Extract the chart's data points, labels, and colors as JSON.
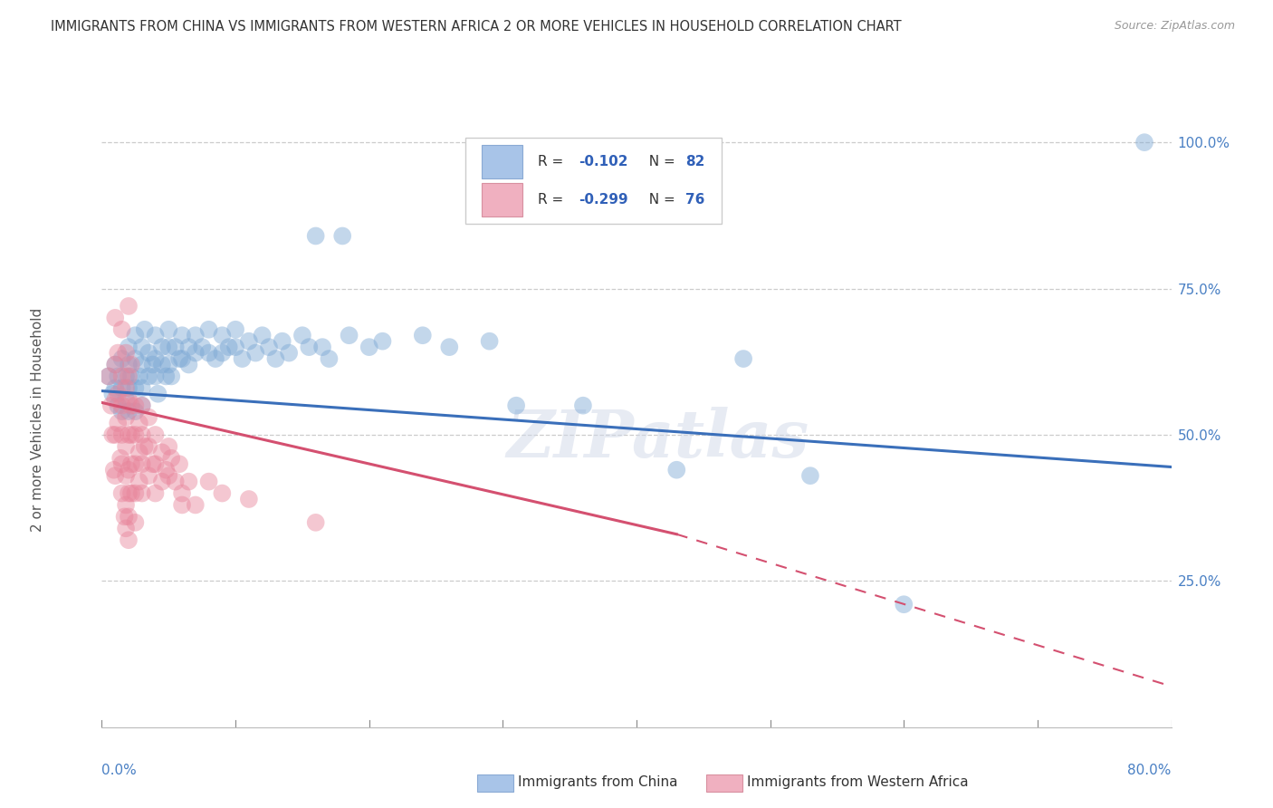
{
  "title": "IMMIGRANTS FROM CHINA VS IMMIGRANTS FROM WESTERN AFRICA 2 OR MORE VEHICLES IN HOUSEHOLD CORRELATION CHART",
  "source": "Source: ZipAtlas.com",
  "ylabel": "2 or more Vehicles in Household",
  "xlim": [
    0.0,
    0.8
  ],
  "ylim": [
    0.0,
    1.05
  ],
  "yticks": [
    0.0,
    0.25,
    0.5,
    0.75,
    1.0
  ],
  "ytick_labels": [
    "",
    "25.0%",
    "50.0%",
    "75.0%",
    "100.0%"
  ],
  "china_color": "#7ba7d4",
  "western_africa_color": "#e8849a",
  "china_line_color": "#3a6fba",
  "wa_line_color": "#d45070",
  "watermark": "ZIPatlas",
  "background_color": "#ffffff",
  "china_scatter": [
    [
      0.005,
      0.6
    ],
    [
      0.008,
      0.57
    ],
    [
      0.01,
      0.62
    ],
    [
      0.01,
      0.58
    ],
    [
      0.012,
      0.6
    ],
    [
      0.012,
      0.55
    ],
    [
      0.015,
      0.63
    ],
    [
      0.015,
      0.58
    ],
    [
      0.015,
      0.54
    ],
    [
      0.018,
      0.6
    ],
    [
      0.018,
      0.56
    ],
    [
      0.02,
      0.65
    ],
    [
      0.02,
      0.62
    ],
    [
      0.02,
      0.58
    ],
    [
      0.02,
      0.54
    ],
    [
      0.022,
      0.6
    ],
    [
      0.025,
      0.67
    ],
    [
      0.025,
      0.63
    ],
    [
      0.025,
      0.58
    ],
    [
      0.025,
      0.54
    ],
    [
      0.028,
      0.6
    ],
    [
      0.03,
      0.65
    ],
    [
      0.03,
      0.62
    ],
    [
      0.03,
      0.58
    ],
    [
      0.03,
      0.55
    ],
    [
      0.032,
      0.68
    ],
    [
      0.035,
      0.64
    ],
    [
      0.035,
      0.6
    ],
    [
      0.038,
      0.62
    ],
    [
      0.04,
      0.67
    ],
    [
      0.04,
      0.63
    ],
    [
      0.04,
      0.6
    ],
    [
      0.042,
      0.57
    ],
    [
      0.045,
      0.65
    ],
    [
      0.045,
      0.62
    ],
    [
      0.048,
      0.6
    ],
    [
      0.05,
      0.68
    ],
    [
      0.05,
      0.65
    ],
    [
      0.05,
      0.62
    ],
    [
      0.052,
      0.6
    ],
    [
      0.055,
      0.65
    ],
    [
      0.058,
      0.63
    ],
    [
      0.06,
      0.67
    ],
    [
      0.06,
      0.63
    ],
    [
      0.065,
      0.65
    ],
    [
      0.065,
      0.62
    ],
    [
      0.07,
      0.67
    ],
    [
      0.07,
      0.64
    ],
    [
      0.075,
      0.65
    ],
    [
      0.08,
      0.68
    ],
    [
      0.08,
      0.64
    ],
    [
      0.085,
      0.63
    ],
    [
      0.09,
      0.67
    ],
    [
      0.09,
      0.64
    ],
    [
      0.095,
      0.65
    ],
    [
      0.1,
      0.68
    ],
    [
      0.1,
      0.65
    ],
    [
      0.105,
      0.63
    ],
    [
      0.11,
      0.66
    ],
    [
      0.115,
      0.64
    ],
    [
      0.12,
      0.67
    ],
    [
      0.125,
      0.65
    ],
    [
      0.13,
      0.63
    ],
    [
      0.135,
      0.66
    ],
    [
      0.14,
      0.64
    ],
    [
      0.15,
      0.67
    ],
    [
      0.155,
      0.65
    ],
    [
      0.16,
      0.84
    ],
    [
      0.165,
      0.65
    ],
    [
      0.17,
      0.63
    ],
    [
      0.18,
      0.84
    ],
    [
      0.185,
      0.67
    ],
    [
      0.2,
      0.65
    ],
    [
      0.21,
      0.66
    ],
    [
      0.24,
      0.67
    ],
    [
      0.26,
      0.65
    ],
    [
      0.29,
      0.66
    ],
    [
      0.31,
      0.55
    ],
    [
      0.36,
      0.55
    ],
    [
      0.43,
      0.44
    ],
    [
      0.48,
      0.63
    ],
    [
      0.53,
      0.43
    ],
    [
      0.6,
      0.21
    ],
    [
      0.78,
      1.0
    ]
  ],
  "western_africa_scatter": [
    [
      0.005,
      0.6
    ],
    [
      0.007,
      0.55
    ],
    [
      0.008,
      0.5
    ],
    [
      0.009,
      0.44
    ],
    [
      0.01,
      0.7
    ],
    [
      0.01,
      0.62
    ],
    [
      0.01,
      0.56
    ],
    [
      0.01,
      0.5
    ],
    [
      0.01,
      0.43
    ],
    [
      0.012,
      0.64
    ],
    [
      0.012,
      0.57
    ],
    [
      0.012,
      0.52
    ],
    [
      0.014,
      0.46
    ],
    [
      0.015,
      0.68
    ],
    [
      0.015,
      0.6
    ],
    [
      0.015,
      0.55
    ],
    [
      0.015,
      0.5
    ],
    [
      0.015,
      0.45
    ],
    [
      0.015,
      0.4
    ],
    [
      0.017,
      0.36
    ],
    [
      0.018,
      0.64
    ],
    [
      0.018,
      0.58
    ],
    [
      0.018,
      0.53
    ],
    [
      0.018,
      0.48
    ],
    [
      0.018,
      0.43
    ],
    [
      0.018,
      0.38
    ],
    [
      0.018,
      0.34
    ],
    [
      0.02,
      0.72
    ],
    [
      0.02,
      0.6
    ],
    [
      0.02,
      0.56
    ],
    [
      0.02,
      0.5
    ],
    [
      0.02,
      0.44
    ],
    [
      0.02,
      0.4
    ],
    [
      0.02,
      0.36
    ],
    [
      0.02,
      0.32
    ],
    [
      0.022,
      0.62
    ],
    [
      0.022,
      0.55
    ],
    [
      0.022,
      0.5
    ],
    [
      0.022,
      0.45
    ],
    [
      0.022,
      0.4
    ],
    [
      0.025,
      0.55
    ],
    [
      0.025,
      0.5
    ],
    [
      0.025,
      0.45
    ],
    [
      0.025,
      0.4
    ],
    [
      0.025,
      0.35
    ],
    [
      0.028,
      0.52
    ],
    [
      0.028,
      0.47
    ],
    [
      0.028,
      0.42
    ],
    [
      0.03,
      0.55
    ],
    [
      0.03,
      0.5
    ],
    [
      0.03,
      0.45
    ],
    [
      0.03,
      0.4
    ],
    [
      0.032,
      0.48
    ],
    [
      0.035,
      0.53
    ],
    [
      0.035,
      0.48
    ],
    [
      0.035,
      0.43
    ],
    [
      0.038,
      0.45
    ],
    [
      0.04,
      0.5
    ],
    [
      0.04,
      0.45
    ],
    [
      0.04,
      0.4
    ],
    [
      0.045,
      0.47
    ],
    [
      0.045,
      0.42
    ],
    [
      0.048,
      0.44
    ],
    [
      0.05,
      0.48
    ],
    [
      0.05,
      0.43
    ],
    [
      0.052,
      0.46
    ],
    [
      0.055,
      0.42
    ],
    [
      0.058,
      0.45
    ],
    [
      0.06,
      0.4
    ],
    [
      0.06,
      0.38
    ],
    [
      0.065,
      0.42
    ],
    [
      0.07,
      0.38
    ],
    [
      0.08,
      0.42
    ],
    [
      0.09,
      0.4
    ],
    [
      0.11,
      0.39
    ],
    [
      0.16,
      0.35
    ]
  ],
  "china_trend": {
    "x_start": 0.0,
    "x_end": 0.8,
    "y_start": 0.575,
    "y_end": 0.445
  },
  "wa_trend_solid": {
    "x_start": 0.0,
    "x_end": 0.43,
    "y_start": 0.555,
    "y_end": 0.33
  },
  "wa_trend_dash": {
    "x_start": 0.43,
    "x_end": 0.8,
    "y_start": 0.33,
    "y_end": 0.07
  }
}
